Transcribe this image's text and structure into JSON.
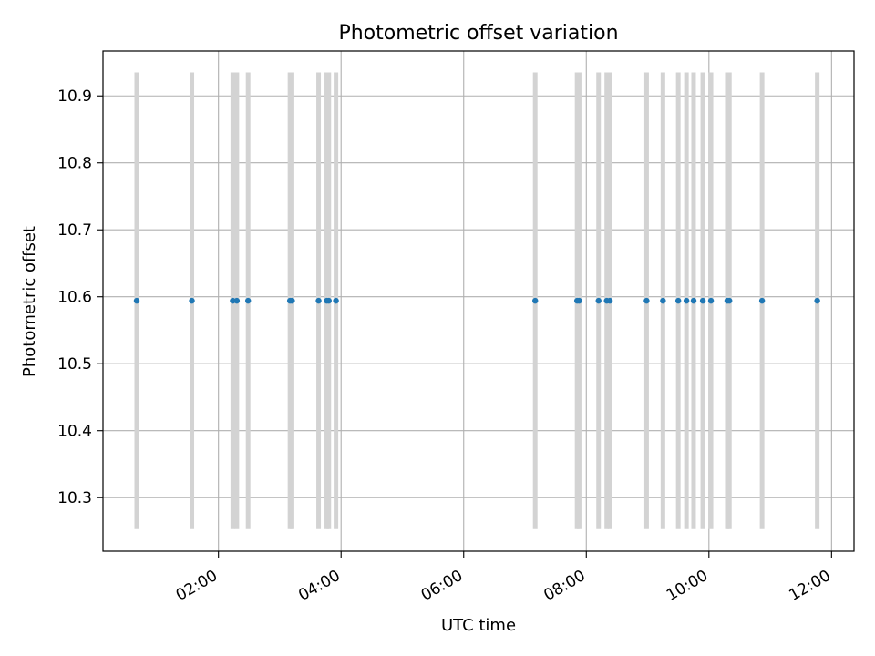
{
  "chart_data": {
    "type": "scatter",
    "title": "Photometric offset variation",
    "xlabel": "UTC time",
    "ylabel": "Photometric offset",
    "xlim": [
      "00:07",
      "12:22"
    ],
    "ylim": [
      10.22,
      10.967
    ],
    "x_ticks": [
      "02:00",
      "04:00",
      "06:00",
      "08:00",
      "10:00",
      "12:00"
    ],
    "y_ticks": [
      "10.3",
      "10.4",
      "10.5",
      "10.6",
      "10.7",
      "10.8",
      "10.9"
    ],
    "grid": true,
    "series": [
      {
        "marker_color": "#1f77b4",
        "error_bar_color": "#d3d3d3",
        "y_error": 0.341,
        "points": [
          {
            "x": "00:40",
            "y": 10.594
          },
          {
            "x": "01:34",
            "y": 10.594
          },
          {
            "x": "02:14",
            "y": 10.594
          },
          {
            "x": "02:18",
            "y": 10.594
          },
          {
            "x": "02:29",
            "y": 10.594
          },
          {
            "x": "03:10",
            "y": 10.594
          },
          {
            "x": "03:12",
            "y": 10.594
          },
          {
            "x": "03:38",
            "y": 10.594
          },
          {
            "x": "03:46",
            "y": 10.594
          },
          {
            "x": "03:48",
            "y": 10.594
          },
          {
            "x": "03:55",
            "y": 10.594
          },
          {
            "x": "07:10",
            "y": 10.594
          },
          {
            "x": "07:51",
            "y": 10.594
          },
          {
            "x": "07:53",
            "y": 10.594
          },
          {
            "x": "08:12",
            "y": 10.594
          },
          {
            "x": "08:20",
            "y": 10.594
          },
          {
            "x": "08:23",
            "y": 10.594
          },
          {
            "x": "08:59",
            "y": 10.594
          },
          {
            "x": "09:15",
            "y": 10.594
          },
          {
            "x": "09:30",
            "y": 10.594
          },
          {
            "x": "09:38",
            "y": 10.594
          },
          {
            "x": "09:45",
            "y": 10.594
          },
          {
            "x": "09:54",
            "y": 10.594
          },
          {
            "x": "10:02",
            "y": 10.594
          },
          {
            "x": "10:18",
            "y": 10.594
          },
          {
            "x": "10:20",
            "y": 10.594
          },
          {
            "x": "10:52",
            "y": 10.594
          },
          {
            "x": "11:46",
            "y": 10.594
          }
        ]
      }
    ]
  }
}
